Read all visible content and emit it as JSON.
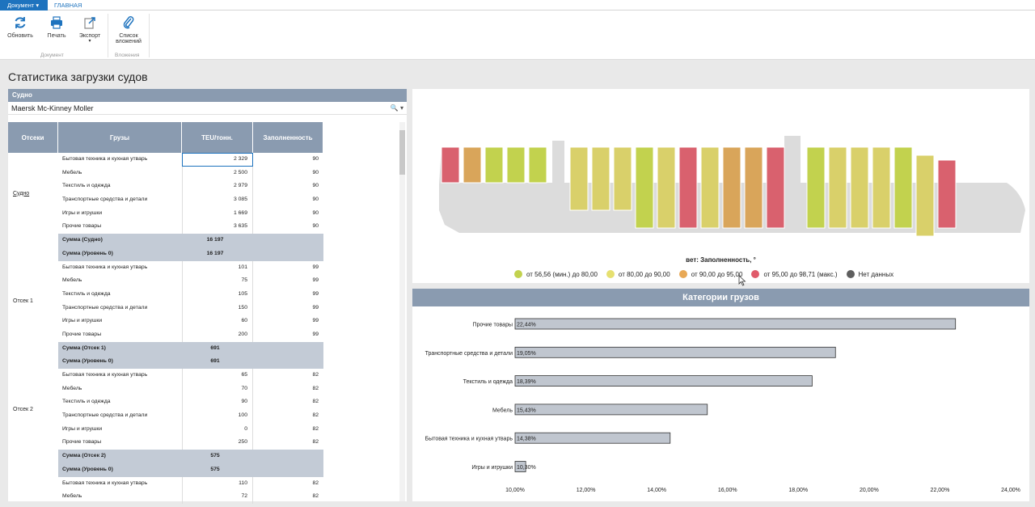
{
  "ribbon": {
    "tab_document": "Документ ▾",
    "tab_main": "ГЛАВНАЯ",
    "buttons": {
      "refresh": "Обновить",
      "print": "Печать",
      "export": "Экспорт",
      "attachments": "Список вложений"
    },
    "groups": {
      "document": "Документ",
      "attachments": "Вложения"
    }
  },
  "page_title": "Статистика загрузки судов",
  "filter": {
    "label": "Судно",
    "value": "Maersk Mc-Kinney Moller"
  },
  "grid": {
    "headers": [
      "Отсеки",
      "Грузы",
      "TEU/тонн.",
      "Заполненность"
    ],
    "sections": [
      {
        "label": "Судно",
        "rows": [
          {
            "name": "Бытовая техника и кухная утварь",
            "teu": "2 329",
            "fill": "90"
          },
          {
            "name": "Мебель",
            "teu": "2 500",
            "fill": "90"
          },
          {
            "name": "Текстиль и одежда",
            "teu": "2 979",
            "fill": "90"
          },
          {
            "name": "Транспортные средства и детали",
            "teu": "3 085",
            "fill": "90"
          },
          {
            "name": "Игры и игрушки",
            "teu": "1 669",
            "fill": "90"
          },
          {
            "name": "Прочие товары",
            "teu": "3 635",
            "fill": "90"
          }
        ],
        "sums": [
          {
            "name": "Сумма (Судно)",
            "teu": "16 197"
          },
          {
            "name": "Сумма (Уровень 0)",
            "teu": "16 197"
          }
        ]
      },
      {
        "label": "Отсек 1",
        "rows": [
          {
            "name": "Бытовая техника и кухная утварь",
            "teu": "101",
            "fill": "99"
          },
          {
            "name": "Мебель",
            "teu": "75",
            "fill": "99"
          },
          {
            "name": "Текстиль и одежда",
            "teu": "105",
            "fill": "99"
          },
          {
            "name": "Транспортные средства и детали",
            "teu": "150",
            "fill": "99"
          },
          {
            "name": "Игры и игрушки",
            "teu": "60",
            "fill": "99"
          },
          {
            "name": "Прочие товары",
            "teu": "200",
            "fill": "99"
          }
        ],
        "sums": [
          {
            "name": "Сумма (Отсек 1)",
            "teu": "691"
          },
          {
            "name": "Сумма (Уровень 0)",
            "teu": "691"
          }
        ]
      },
      {
        "label": "Отсек 2",
        "rows": [
          {
            "name": "Бытовая техника и кухная утварь",
            "teu": "65",
            "fill": "82"
          },
          {
            "name": "Мебель",
            "teu": "70",
            "fill": "82"
          },
          {
            "name": "Текстиль и одежда",
            "teu": "90",
            "fill": "82"
          },
          {
            "name": "Транспортные средства и детали",
            "teu": "100",
            "fill": "82"
          },
          {
            "name": "Игры и игрушки",
            "teu": "0",
            "fill": "82"
          },
          {
            "name": "Прочие товары",
            "teu": "250",
            "fill": "82"
          }
        ],
        "sums": [
          {
            "name": "Сумма (Отсек 2)",
            "teu": "575"
          },
          {
            "name": "Сумма (Уровень 0)",
            "teu": "575"
          }
        ]
      },
      {
        "label": "",
        "rows": [
          {
            "name": "Бытовая техника и кухная утварь",
            "teu": "110",
            "fill": "82"
          },
          {
            "name": "Мебель",
            "teu": "72",
            "fill": "82"
          }
        ],
        "sums": []
      }
    ]
  },
  "ship": {
    "fill_label": "вет: Заполненность, °",
    "colors": {
      "green": "#c2d24e",
      "yellow": "#d9d06a",
      "orange": "#d9a55a",
      "red": "#d9616e",
      "nodata": "#606060",
      "hull": "#dcdcdc"
    },
    "bays": [
      "red",
      "orange",
      "green",
      "green",
      "green",
      "yellow",
      "yellow",
      "yellow",
      "green",
      "yellow",
      "red",
      "yellow",
      "orange",
      "orange",
      "red",
      "green",
      "yellow",
      "yellow",
      "yellow",
      "green",
      "yellow",
      "red"
    ],
    "legend": [
      {
        "label": "от 56,56 (мин.) до 80,00",
        "color": "#c2d24e"
      },
      {
        "label": "от 80,00 до 90,00",
        "color": "#e6e070"
      },
      {
        "label": "от 90,00 до 95,00",
        "color": "#e8a855"
      },
      {
        "label": "от 95,00 до 98,71 (макс.)",
        "color": "#e05a6a"
      },
      {
        "label": "Нет данных",
        "color": "#5e5e5e"
      }
    ]
  },
  "cargo_chart_title": "Категории грузов",
  "chart_data": {
    "type": "bar",
    "orientation": "horizontal",
    "title": "Категории грузов",
    "categories": [
      "Прочие товары",
      "Транспортные средства и детали",
      "Текстиль и одежда",
      "Мебель",
      "Бытовая техника и кухная утварь",
      "Игры и игрушки"
    ],
    "values": [
      22.44,
      19.05,
      18.39,
      15.43,
      14.38,
      10.3
    ],
    "value_labels": [
      "22,44%",
      "19,05%",
      "18,39%",
      "15,43%",
      "14,38%",
      "10,30%"
    ],
    "xlim": [
      10,
      24
    ],
    "xticks": [
      "10,00%",
      "12,00%",
      "14,00%",
      "16,00%",
      "18,00%",
      "20,00%",
      "22,00%",
      "24,00%"
    ],
    "bar_color": "#c0c6cf"
  }
}
